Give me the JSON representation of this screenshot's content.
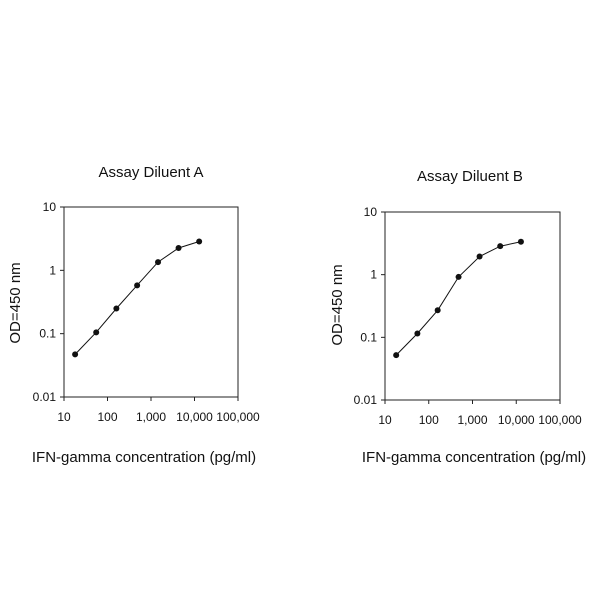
{
  "chart_data": [
    {
      "type": "line",
      "title": "Assay Diluent A",
      "xlabel": "IFN-gamma concentration (pg/ml)",
      "ylabel": "OD=450 nm",
      "x_scale": "log",
      "y_scale": "log",
      "xlim": [
        10,
        100000
      ],
      "ylim": [
        0.01,
        10
      ],
      "x_ticks": [
        10,
        100,
        1000,
        10000,
        100000
      ],
      "x_tick_labels": [
        "10",
        "100",
        "1,000",
        "10,000",
        "100,000"
      ],
      "y_ticks": [
        0.01,
        0.1,
        1,
        10
      ],
      "y_tick_labels": [
        "0.01",
        "0.1",
        "1",
        "10"
      ],
      "grid": false,
      "series": [
        {
          "x": [
            18,
            55,
            160,
            480,
            1450,
            4300,
            12800
          ],
          "y": [
            0.047,
            0.105,
            0.25,
            0.58,
            1.35,
            2.25,
            2.85
          ]
        }
      ]
    },
    {
      "type": "line",
      "title": "Assay Diluent B",
      "xlabel": "IFN-gamma concentration (pg/ml)",
      "ylabel": "OD=450 nm",
      "x_scale": "log",
      "y_scale": "log",
      "xlim": [
        10,
        100000
      ],
      "ylim": [
        0.01,
        10
      ],
      "x_ticks": [
        10,
        100,
        1000,
        10000,
        100000
      ],
      "x_tick_labels": [
        "10",
        "100",
        "1,000",
        "10,000",
        "100,000"
      ],
      "y_ticks": [
        0.01,
        0.1,
        1,
        10
      ],
      "y_tick_labels": [
        "0.01",
        "0.1",
        "1",
        "10"
      ],
      "grid": false,
      "series": [
        {
          "x": [
            18,
            55,
            160,
            480,
            1450,
            4300,
            12800
          ],
          "y": [
            0.052,
            0.115,
            0.27,
            0.92,
            1.95,
            2.85,
            3.35
          ]
        }
      ]
    }
  ]
}
